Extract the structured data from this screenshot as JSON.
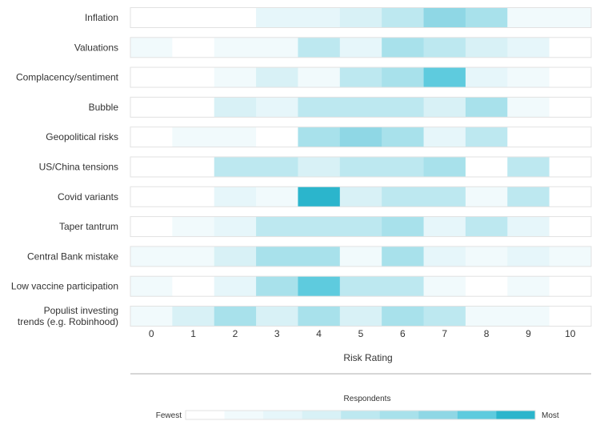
{
  "chart_data": {
    "type": "heatmap",
    "xlabel": "Risk Rating",
    "x_ticks": [
      "0",
      "1",
      "2",
      "3",
      "4",
      "5",
      "6",
      "7",
      "8",
      "9",
      "10"
    ],
    "rows": [
      {
        "label": [
          "Inflation"
        ],
        "values": [
          0,
          0,
          0,
          2,
          2,
          3,
          4,
          6,
          5,
          1,
          1
        ]
      },
      {
        "label": [
          "Valuations"
        ],
        "values": [
          1,
          0,
          1,
          1,
          4,
          2,
          5,
          4,
          3,
          2,
          0
        ]
      },
      {
        "label": [
          "Complacency/sentiment"
        ],
        "values": [
          0,
          0,
          1,
          3,
          1,
          4,
          5,
          7,
          2,
          1,
          0
        ]
      },
      {
        "label": [
          "Bubble"
        ],
        "values": [
          0,
          0,
          3,
          2,
          4,
          4,
          4,
          3,
          5,
          1,
          0
        ]
      },
      {
        "label": [
          "Geopolitical risks"
        ],
        "values": [
          0,
          1,
          1,
          0,
          5,
          6,
          5,
          2,
          4,
          0,
          0
        ]
      },
      {
        "label": [
          "US/China tensions"
        ],
        "values": [
          0,
          0,
          4,
          4,
          3,
          4,
          4,
          5,
          0,
          4,
          0
        ]
      },
      {
        "label": [
          "Covid variants"
        ],
        "values": [
          0,
          0,
          2,
          1,
          8,
          3,
          4,
          4,
          1,
          4,
          0
        ]
      },
      {
        "label": [
          "Taper tantrum"
        ],
        "values": [
          0,
          1,
          2,
          4,
          4,
          4,
          5,
          2,
          4,
          2,
          0
        ]
      },
      {
        "label": [
          "Central Bank mistake"
        ],
        "values": [
          1,
          1,
          3,
          5,
          5,
          1,
          5,
          2,
          1,
          2,
          1
        ]
      },
      {
        "label": [
          "Low vaccine participation"
        ],
        "values": [
          1,
          0,
          2,
          5,
          7,
          4,
          4,
          1,
          0,
          1,
          0
        ]
      },
      {
        "label": [
          "Populist investing",
          "trends (e.g. Robinhood)"
        ],
        "values": [
          1,
          3,
          5,
          3,
          5,
          3,
          5,
          4,
          1,
          1,
          0
        ]
      }
    ],
    "legend": {
      "title": "Respondents",
      "low_label": "Fewest",
      "high_label": "Most",
      "scale_colors": [
        "#ffffff",
        "#f1fafc",
        "#e6f6fa",
        "#d8f1f6",
        "#bde8f0",
        "#a8e1eb",
        "#8fd7e5",
        "#5ecbde",
        "#2bb5cc"
      ]
    }
  }
}
